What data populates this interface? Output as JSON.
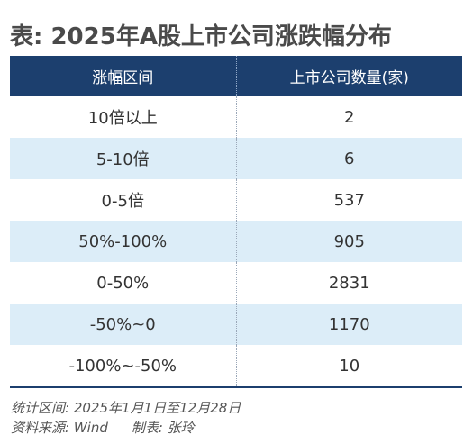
{
  "title": "表: 2025年A股上市公司涨跌幅分布",
  "table": {
    "headers": [
      "涨幅区间",
      "上市公司数量(家)"
    ],
    "rows": [
      {
        "range": "10倍以上",
        "count": "2"
      },
      {
        "range": "5-10倍",
        "count": "6"
      },
      {
        "range": "0-5倍",
        "count": "537"
      },
      {
        "range": "50%-100%",
        "count": "905"
      },
      {
        "range": "0-50%",
        "count": "2831"
      },
      {
        "range": "-50%~0",
        "count": "1170"
      },
      {
        "range": "-100%~-50%",
        "count": "10"
      }
    ]
  },
  "notes": {
    "period": "统计区间: 2025年1月1日至12月28日",
    "source": "资料来源: Wind",
    "author": "制表: 张玲"
  },
  "colors": {
    "header_bg": "#1c3f6e",
    "alt_row_bg": "#dcedf8",
    "title_text": "#4a4a4a"
  }
}
